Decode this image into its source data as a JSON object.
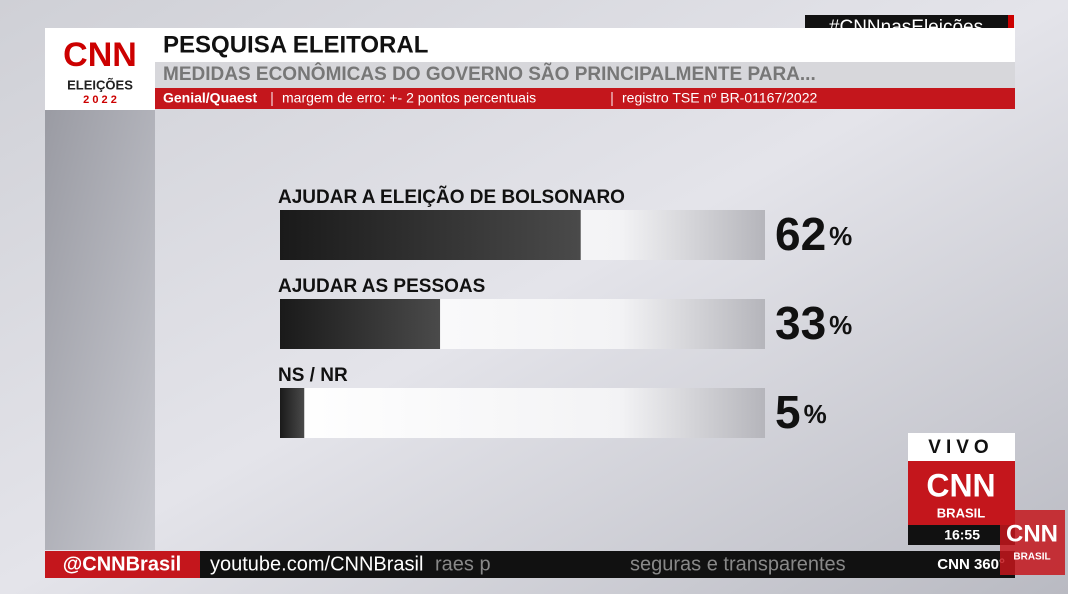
{
  "header": {
    "hashtag": "#CNNnasEleições",
    "logo": "CNN",
    "logo_sub": "ELEIÇÕES",
    "logo_year": "2 0 2 2"
  },
  "chart_data": {
    "type": "bar",
    "orientation": "horizontal",
    "title": "PESQUISA ELEITORAL",
    "subtitle": "MEDIDAS ECONÔMICAS DO GOVERNO SÃO PRINCIPALMENTE PARA...",
    "source": "Genial/Quaest",
    "notes": [
      "margem de erro: +- 2 pontos percentuais",
      "registro TSE nº BR-01167/2022"
    ],
    "categories": [
      "AJUDAR A ELEIÇÃO DE BOLSONARO",
      "AJUDAR AS PESSOAS",
      "NS / NR"
    ],
    "values": [
      62,
      33,
      5
    ],
    "unit": "%",
    "xlim": [
      0,
      100
    ],
    "color": "#222222"
  },
  "live": {
    "label": "VIVO",
    "logo": "CNN",
    "logo_sub": "BRASIL",
    "time": "16:55"
  },
  "ticker": {
    "handle": "@CNNBrasil",
    "url": "youtube.com/CNNBrasil",
    "scroll": "raes p",
    "scroll_end": "seguras e transparentes",
    "program": "CNN 360°"
  },
  "corner": {
    "logo": "CNN",
    "logo_sub": "BRASIL"
  }
}
